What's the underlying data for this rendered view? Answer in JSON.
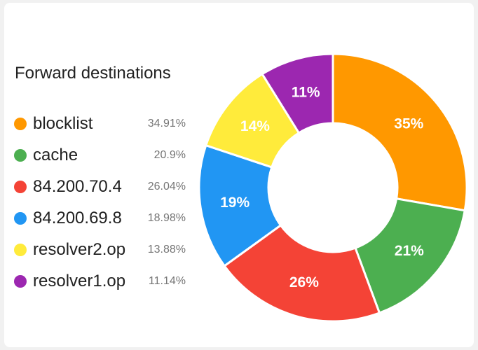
{
  "chart_data": {
    "type": "pie",
    "title": "Forward destinations",
    "slices": [
      {
        "name": "blocklist",
        "value": 34.91,
        "display": "34.91%",
        "label": "35%",
        "color": "#ff9800"
      },
      {
        "name": "cache",
        "value": 20.9,
        "display": "20.9%",
        "label": "21%",
        "color": "#4caf50"
      },
      {
        "name": "84.200.70.4",
        "value": 26.04,
        "display": "26.04%",
        "label": "26%",
        "color": "#f44336"
      },
      {
        "name": "84.200.69.8",
        "value": 18.98,
        "display": "18.98%",
        "label": "19%",
        "color": "#2196f3"
      },
      {
        "name": "resolver2.op",
        "value": 13.88,
        "display": "13.88%",
        "label": "14%",
        "color": "#ffeb3b"
      },
      {
        "name": "resolver1.op",
        "value": 11.14,
        "display": "11.14%",
        "label": "11%",
        "color": "#9c27b0"
      }
    ],
    "legend_position": "left",
    "donut": true
  }
}
